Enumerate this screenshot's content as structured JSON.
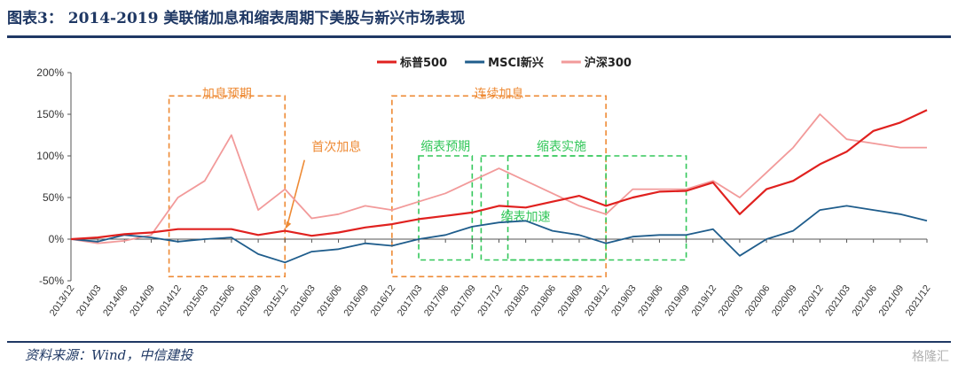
{
  "figure_title": "图表3： 2014-2019 美联储加息和缩表周期下美股与新兴市场表现",
  "source_note": "资料来源：Wind，中信建投",
  "watermark": "格隆汇",
  "chart_data": {
    "type": "line",
    "title": "",
    "xlabel": "",
    "ylabel": "",
    "ylim": [
      -50,
      200
    ],
    "yticks": [
      -50,
      0,
      50,
      100,
      150,
      200
    ],
    "ytick_labels": [
      "-50%",
      "0%",
      "50%",
      "100%",
      "150%",
      "200%"
    ],
    "xticks": [
      "2013/12",
      "2014/03",
      "2014/06",
      "2014/09",
      "2014/12",
      "2015/03",
      "2015/06",
      "2015/09",
      "2015/12",
      "2016/03",
      "2016/06",
      "2016/09",
      "2016/12",
      "2017/03",
      "2017/06",
      "2017/09",
      "2017/12",
      "2018/03",
      "2018/06",
      "2018/09",
      "2018/12",
      "2019/03",
      "2019/06",
      "2019/09",
      "2019/12",
      "2020/03",
      "2020/06",
      "2020/09",
      "2020/12",
      "2021/03",
      "2021/06",
      "2021/09",
      "2021/12"
    ],
    "grid": false,
    "legend_position": "top-center",
    "colors": {
      "sp500": "#e0211f",
      "msci": "#1f5d8c",
      "hs300": "#f29a9a",
      "orange": "#ee8a34",
      "green": "#33c75a"
    },
    "series": [
      {
        "key": "sp500",
        "name": "标普500",
        "color": "#e0211f",
        "x": [
          "2013/12",
          "2014/03",
          "2014/06",
          "2014/09",
          "2014/12",
          "2015/03",
          "2015/06",
          "2015/09",
          "2015/12",
          "2016/03",
          "2016/06",
          "2016/09",
          "2016/12",
          "2017/03",
          "2017/06",
          "2017/09",
          "2017/12",
          "2018/03",
          "2018/06",
          "2018/09",
          "2018/12",
          "2019/03",
          "2019/06",
          "2019/09",
          "2019/12",
          "2020/03",
          "2020/06",
          "2020/09",
          "2020/12",
          "2021/03",
          "2021/06",
          "2021/09",
          "2021/12"
        ],
        "values": [
          0,
          2,
          6,
          8,
          12,
          12,
          12,
          5,
          10,
          4,
          8,
          14,
          18,
          24,
          28,
          32,
          40,
          38,
          45,
          52,
          40,
          50,
          57,
          58,
          68,
          30,
          60,
          70,
          90,
          105,
          130,
          140,
          155
        ]
      },
      {
        "key": "msci",
        "name": "MSCI新兴",
        "color": "#1f5d8c",
        "x": [
          "2013/12",
          "2014/03",
          "2014/06",
          "2014/09",
          "2014/12",
          "2015/03",
          "2015/06",
          "2015/09",
          "2015/12",
          "2016/03",
          "2016/06",
          "2016/09",
          "2016/12",
          "2017/03",
          "2017/06",
          "2017/09",
          "2017/12",
          "2018/03",
          "2018/06",
          "2018/09",
          "2018/12",
          "2019/03",
          "2019/06",
          "2019/09",
          "2019/12",
          "2020/03",
          "2020/06",
          "2020/09",
          "2020/12",
          "2021/03",
          "2021/06",
          "2021/09",
          "2021/12"
        ],
        "values": [
          0,
          -3,
          5,
          2,
          -3,
          0,
          2,
          -18,
          -28,
          -15,
          -12,
          -5,
          -8,
          0,
          5,
          15,
          20,
          22,
          10,
          5,
          -5,
          3,
          5,
          5,
          12,
          -20,
          0,
          10,
          35,
          40,
          35,
          30,
          22
        ]
      },
      {
        "key": "hs300",
        "name": "沪深300",
        "color": "#f29a9a",
        "x": [
          "2013/12",
          "2014/03",
          "2014/06",
          "2014/09",
          "2014/12",
          "2015/03",
          "2015/06",
          "2015/09",
          "2015/12",
          "2016/03",
          "2016/06",
          "2016/09",
          "2016/12",
          "2017/03",
          "2017/06",
          "2017/09",
          "2017/12",
          "2018/03",
          "2018/06",
          "2018/09",
          "2018/12",
          "2019/03",
          "2019/06",
          "2019/09",
          "2019/12",
          "2020/03",
          "2020/06",
          "2020/09",
          "2020/12",
          "2021/03",
          "2021/06",
          "2021/09",
          "2021/12"
        ],
        "values": [
          0,
          -5,
          -2,
          5,
          50,
          70,
          125,
          35,
          60,
          25,
          30,
          40,
          35,
          45,
          55,
          70,
          85,
          70,
          55,
          40,
          30,
          60,
          60,
          60,
          70,
          50,
          80,
          110,
          150,
          120,
          115,
          110,
          110
        ]
      }
    ],
    "annotations": [
      {
        "key": "hike_expect",
        "text": "加息预期",
        "color": "orange",
        "x0": "2014/11",
        "x1": "2015/12",
        "y0": -45,
        "y1": 172
      },
      {
        "key": "hike_continuous",
        "text": "连续加息",
        "color": "orange",
        "x0": "2016/12",
        "x1": "2018/12",
        "y0": -45,
        "y1": 172
      },
      {
        "key": "shrink_expect",
        "text": "缩表预期",
        "color": "green",
        "x0": "2017/03",
        "x1": "2017/09",
        "y0": -25,
        "y1": 100
      },
      {
        "key": "shrink_implement",
        "text": "缩表实施",
        "color": "green",
        "x0": "2017/10",
        "x1": "2019/09",
        "y0": -25,
        "y1": 100
      },
      {
        "key": "shrink_accelerate",
        "text": "缩表加速",
        "color": "green",
        "x0": "2018/01",
        "x1": "2018/12",
        "y0": -25,
        "y1": 100
      },
      {
        "key": "first_hike",
        "text": "首次加息",
        "color": "orange",
        "x": "2015/12",
        "y": 12
      }
    ]
  }
}
